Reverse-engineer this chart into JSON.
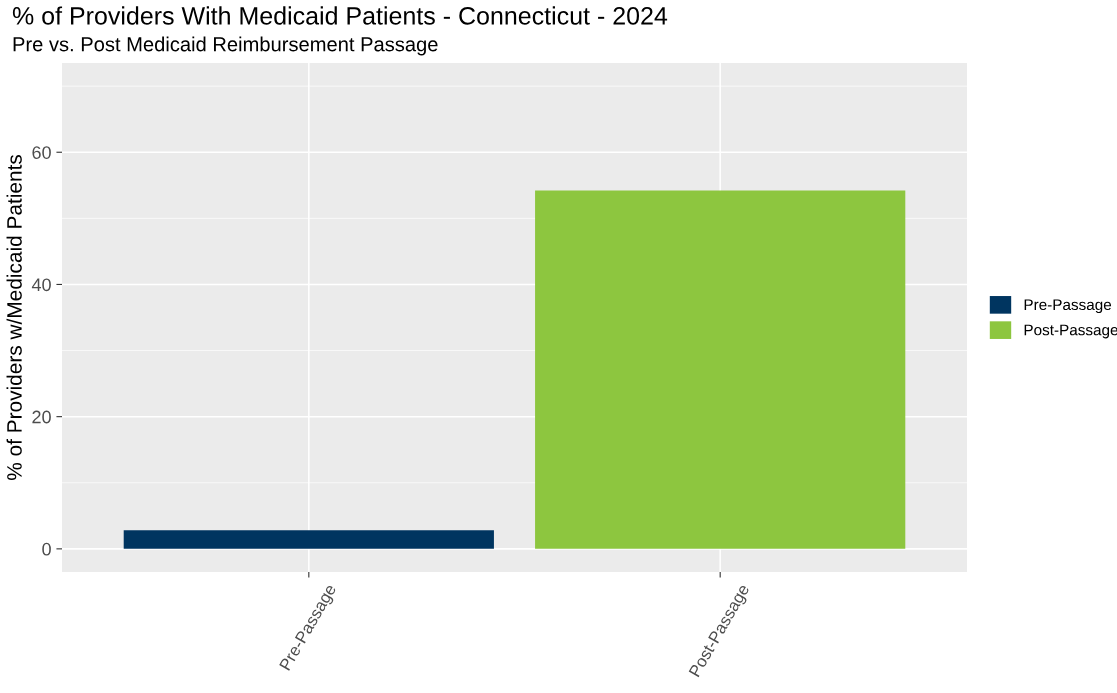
{
  "chart_data": {
    "type": "bar",
    "title": "% of Providers With Medicaid Patients - Connecticut - 2024",
    "subtitle": "Pre vs. Post Medicaid Reimbursement Passage",
    "ylabel": "% of Providers w/Medicaid Patients",
    "categories": [
      "Pre-Passage",
      "Post-Passage"
    ],
    "series": [
      {
        "name": "Pre-Passage",
        "color": "#003560",
        "values": [
          2.8,
          null
        ]
      },
      {
        "name": "Post-Passage",
        "color": "#8dc63f",
        "values": [
          null,
          54.2
        ]
      }
    ],
    "ylim": [
      -3.5,
      73.5
    ],
    "yticks": [
      0,
      20,
      40,
      60
    ],
    "grid": true,
    "legend": "right"
  }
}
